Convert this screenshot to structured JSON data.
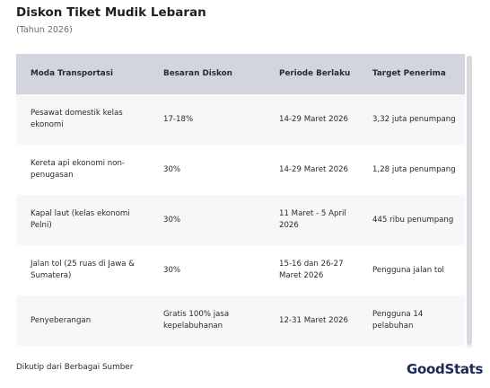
{
  "header": {
    "title": "Diskon Tiket Mudik Lebaran",
    "subtitle": "(Tahun 2026)"
  },
  "table": {
    "columns": [
      "Moda Transportasi",
      "Besaran Diskon",
      "Periode Berlaku",
      "Target Penerima"
    ],
    "rows": [
      [
        "Pesawat domestik kelas ekonomi",
        "17-18%",
        "14-29 Maret 2026",
        "3,32 juta penumpang"
      ],
      [
        "Kereta api ekonomi non-penugasan",
        "30%",
        "14-29 Maret 2026",
        "1,28 juta penumpang"
      ],
      [
        "Kapal laut (kelas ekonomi Pelni)",
        "30%",
        "11 Maret - 5 April 2026",
        "445 ribu penumpang"
      ],
      [
        "Jalan tol (25 ruas di Jawa & Sumatera)",
        "30%",
        "15-16 dan 26-27 Maret 2026",
        "Pengguna jalan tol"
      ],
      [
        "Penyeberangan",
        "Gratis 100% jasa kepelabuhanan",
        "12-31 Maret 2026",
        "Pengguna 14 pelabuhan"
      ]
    ]
  },
  "footer": {
    "source": "Dikutip dari Berbagai Sumber",
    "logo_text": "GoodStats"
  },
  "colors": {
    "header_bg": "#d3d5de",
    "row_alt_bg": "#f7f7f9",
    "logo": "#1e2a55"
  }
}
